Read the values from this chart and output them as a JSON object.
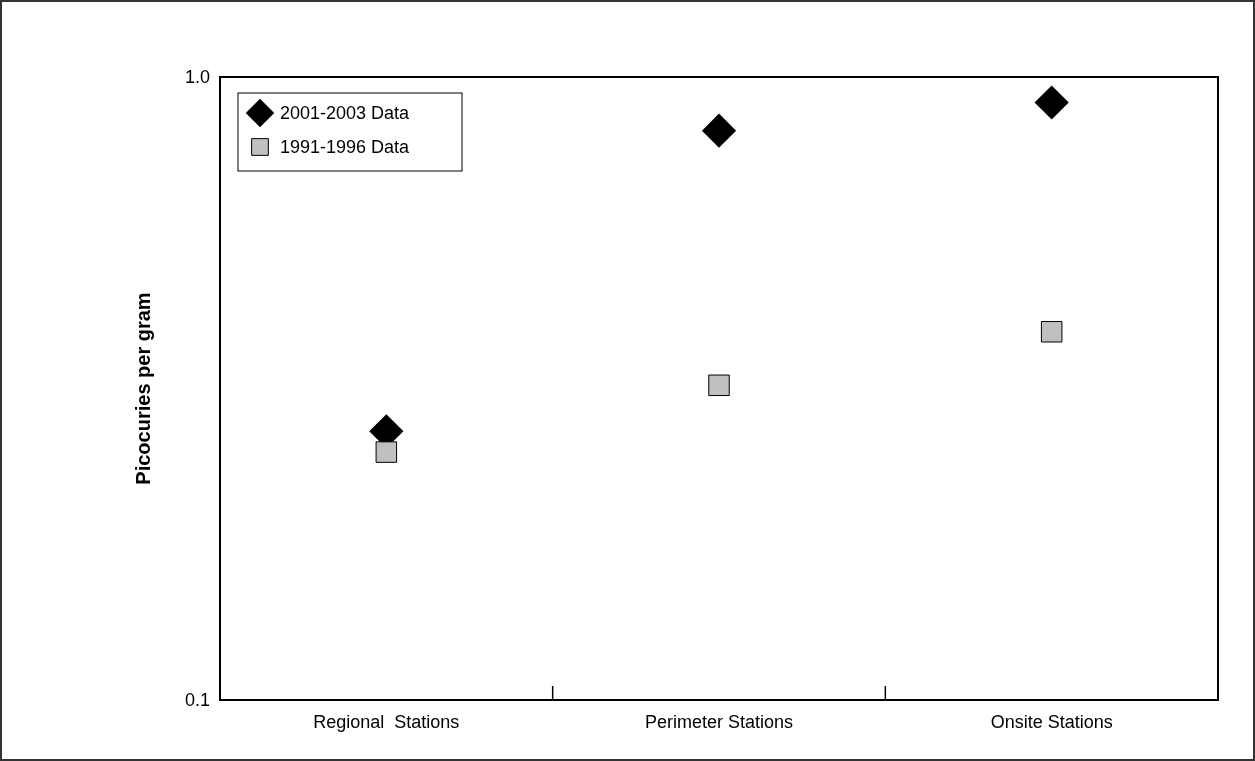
{
  "chart_data": {
    "type": "scatter",
    "ylabel": "Picocuries per gram",
    "categories": [
      "Regional  Stations",
      "Perimeter Stations",
      "Onsite Stations"
    ],
    "log": true,
    "ylim": [
      0.1,
      1
    ],
    "yticks": [
      0.1,
      {
        "value": 1,
        "label": "1.0"
      }
    ],
    "legend": "top left",
    "series": [
      {
        "name": "2001-2003 Data",
        "color": "#000000",
        "marker": "diamond",
        "values": [
          0.27,
          0.82,
          0.91
        ]
      },
      {
        "name": "1991-1996 Data",
        "color": "#c0c0c0",
        "marker": "square",
        "values": [
          0.25,
          0.32,
          0.39
        ]
      }
    ]
  }
}
